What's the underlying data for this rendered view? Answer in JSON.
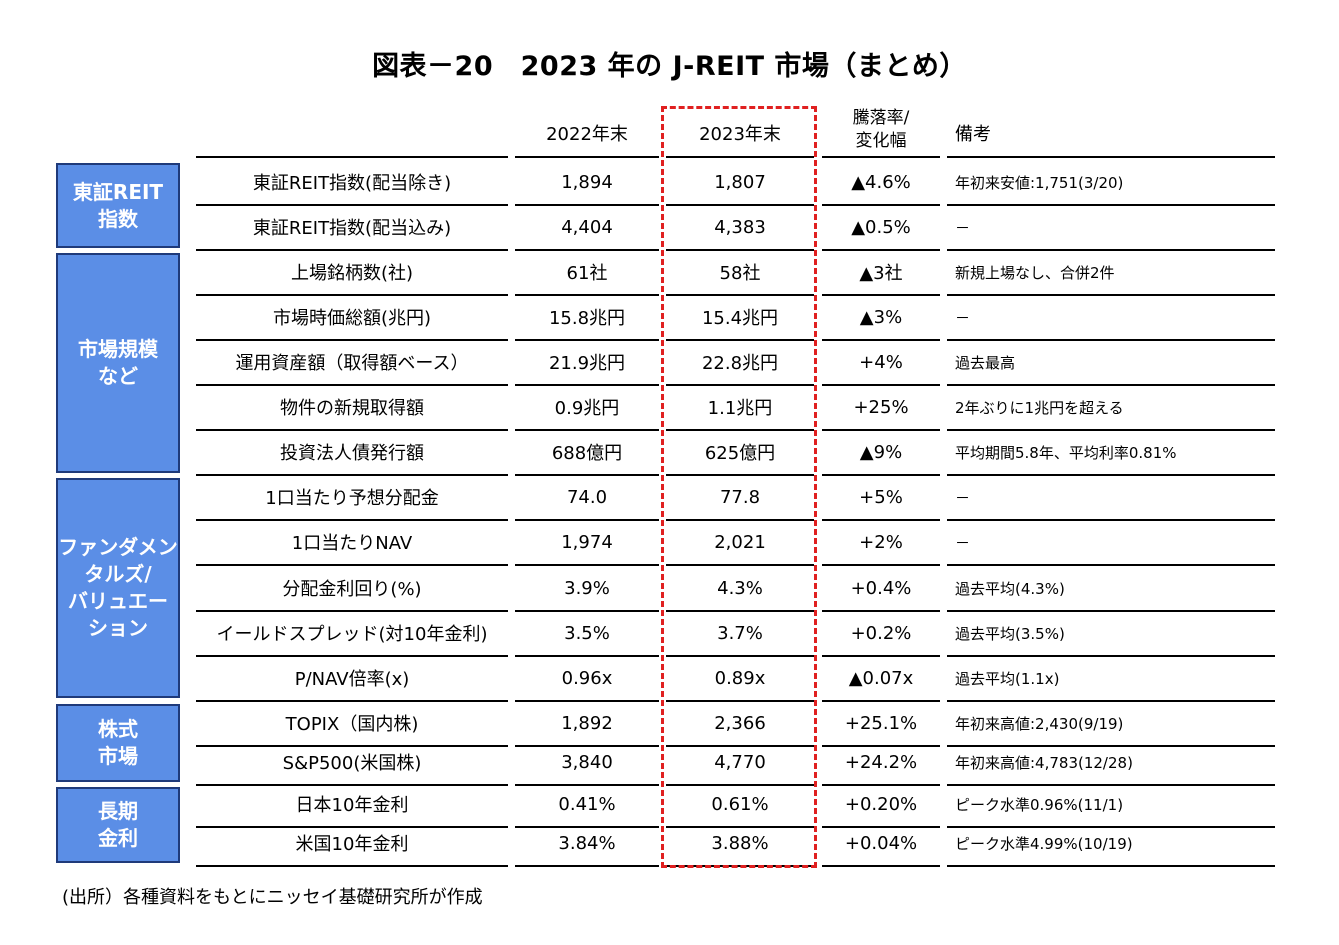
{
  "title": "図表－20　2023 年の J-REIT 市場（まとめ）",
  "headers": {
    "y2022": "2022年末",
    "y2023": "2023年末",
    "change_line1": "騰落率/",
    "change_line2": "変化幅",
    "note": "備考"
  },
  "categories": [
    {
      "label": "東証REIT\n指数"
    },
    {
      "label": "市場規模\nなど"
    },
    {
      "label": "ファンダメン\nタルズ/\nバリュエー\nション"
    },
    {
      "label": "株式\n市場"
    },
    {
      "label": "長期\n金利"
    }
  ],
  "rows": [
    {
      "label": "東証REIT指数(配当除き)",
      "y2022": "1,894",
      "y2023": "1,807",
      "change": "▲4.6%",
      "note": "年初来安値:1,751(3/20)"
    },
    {
      "label": "東証REIT指数(配当込み)",
      "y2022": "4,404",
      "y2023": "4,383",
      "change": "▲0.5%",
      "note": "－"
    },
    {
      "label": "上場銘柄数(社)",
      "y2022": "61社",
      "y2023": "58社",
      "change": "▲3社",
      "note": "新規上場なし、合併2件"
    },
    {
      "label": "市場時価総額(兆円)",
      "y2022": "15.8兆円",
      "y2023": "15.4兆円",
      "change": "▲3%",
      "note": "－"
    },
    {
      "label": "運用資産額（取得額ベース）",
      "y2022": "21.9兆円",
      "y2023": "22.8兆円",
      "change": "+4%",
      "note": "過去最高"
    },
    {
      "label": "物件の新規取得額",
      "y2022": "0.9兆円",
      "y2023": "1.1兆円",
      "change": "+25%",
      "note": "2年ぶりに1兆円を超える"
    },
    {
      "label": "投資法人債発行額",
      "y2022": "688億円",
      "y2023": "625億円",
      "change": "▲9%",
      "note": "平均期間5.8年、平均利率0.81%"
    },
    {
      "label": "1口当たり予想分配金",
      "y2022": "74.0",
      "y2023": "77.8",
      "change": "+5%",
      "note": "－"
    },
    {
      "label": "1口当たりNAV",
      "y2022": "1,974",
      "y2023": "2,021",
      "change": "+2%",
      "note": "－"
    },
    {
      "label": "分配金利回り(%)",
      "y2022": "3.9%",
      "y2023": "4.3%",
      "change": "+0.4%",
      "note": "過去平均(4.3%)"
    },
    {
      "label": "イールドスプレッド(対10年金利)",
      "y2022": "3.5%",
      "y2023": "3.7%",
      "change": "+0.2%",
      "note": "過去平均(3.5%)"
    },
    {
      "label": "P/NAV倍率(x)",
      "y2022": "0.96x",
      "y2023": "0.89x",
      "change": "▲0.07x",
      "note": "過去平均(1.1x)"
    },
    {
      "label": "TOPIX（国内株)",
      "y2022": "1,892",
      "y2023": "2,366",
      "change": "+25.1%",
      "note": "年初来高値:2,430(9/19)"
    },
    {
      "label": "S&P500(米国株)",
      "y2022": "3,840",
      "y2023": "4,770",
      "change": "+24.2%",
      "note": "年初来高値:4,783(12/28)"
    },
    {
      "label": "日本10年金利",
      "y2022": "0.41%",
      "y2023": "0.61%",
      "change": "+0.20%",
      "note": "ピーク水準0.96%(11/1)"
    },
    {
      "label": "米国10年金利",
      "y2022": "3.84%",
      "y2023": "3.88%",
      "change": "+0.04%",
      "note": "ピーク水準4.99%(10/19)"
    }
  ],
  "source": "(出所）各種資料をもとにニッセイ基礎研究所が作成",
  "colors": {
    "category_fill": "#5b8ee6",
    "highlight_border": "#e02020"
  }
}
